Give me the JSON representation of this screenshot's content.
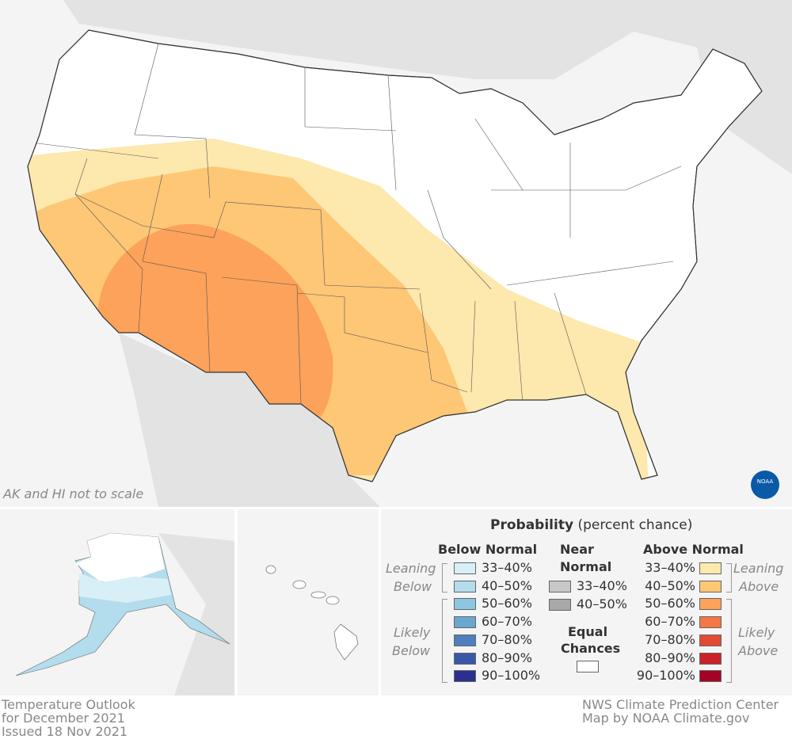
{
  "map": {
    "note": "AK and HI not to scale",
    "logo": "NOAA"
  },
  "footer": {
    "left": [
      "Temperature Outlook",
      "for December 2021",
      "Issued 18 Nov 2021"
    ],
    "right": [
      "NWS Climate Prediction Center",
      "Map by NOAA Climate.gov"
    ]
  },
  "legend": {
    "title_bold": "Probability",
    "title_rest": "(percent chance)",
    "below": {
      "heading": "Below Normal",
      "leaning": "Leaning",
      "leaning2": "Below",
      "likely": "Likely",
      "likely2": "Below",
      "items": [
        {
          "label": "33–40%",
          "color": "#d8eff7"
        },
        {
          "label": "40–50%",
          "color": "#b3dcec"
        },
        {
          "label": "50–60%",
          "color": "#8ec6df"
        },
        {
          "label": "60–70%",
          "color": "#6aa8cf"
        },
        {
          "label": "70–80%",
          "color": "#4d80bd"
        },
        {
          "label": "80–90%",
          "color": "#3a58a8"
        },
        {
          "label": "90–100%",
          "color": "#2b3090"
        }
      ]
    },
    "near": {
      "heading1": "Near",
      "heading2": "Normal",
      "items": [
        {
          "label": "33–40%",
          "color": "#c8c8c8"
        },
        {
          "label": "40–50%",
          "color": "#a8a8a8"
        }
      ]
    },
    "equal": {
      "heading1": "Equal",
      "heading2": "Chances",
      "color": "#ffffff"
    },
    "above": {
      "heading": "Above Normal",
      "leaning": "Leaning",
      "leaning2": "Above",
      "likely": "Likely",
      "likely2": "Above",
      "items": [
        {
          "label": "33–40%",
          "color": "#fde8ad"
        },
        {
          "label": "40–50%",
          "color": "#fdc776"
        },
        {
          "label": "50–60%",
          "color": "#fda25a"
        },
        {
          "label": "60–70%",
          "color": "#f57745"
        },
        {
          "label": "70–80%",
          "color": "#e24a33"
        },
        {
          "label": "80–90%",
          "color": "#c92228"
        },
        {
          "label": "90–100%",
          "color": "#a50026"
        }
      ]
    }
  }
}
